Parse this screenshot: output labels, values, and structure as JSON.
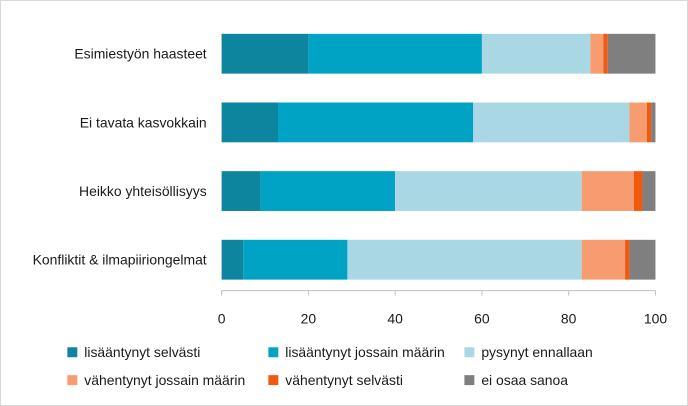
{
  "chart_data": {
    "type": "bar",
    "orientation": "horizontal",
    "stacked": true,
    "categories": [
      "Esimiestyön haasteet",
      "Ei tavata kasvokkain",
      "Heikko yhteisöllisyys",
      "Konfliktit & ilmapiiriongelmat"
    ],
    "series": [
      {
        "name": "lisääntynyt selvästi",
        "color": "#0e859e",
        "values": [
          20,
          13,
          9,
          5
        ]
      },
      {
        "name": "lisääntynyt jossain määrin",
        "color": "#00a3c4",
        "values": [
          40,
          45,
          31,
          24
        ]
      },
      {
        "name": "pysynyt ennallaan",
        "color": "#a9d8e4",
        "values": [
          25,
          36,
          43,
          54
        ]
      },
      {
        "name": "vähentynyt jossain määrin",
        "color": "#f79b70",
        "values": [
          3,
          4,
          12,
          10
        ]
      },
      {
        "name": "vähentynyt selvästi",
        "color": "#ef5a0e",
        "values": [
          1,
          1,
          2,
          1
        ]
      },
      {
        "name": "ei osaa sanoa",
        "color": "#7f7f7f",
        "values": [
          11,
          1,
          3,
          6
        ]
      }
    ],
    "xlim": [
      0,
      100
    ],
    "xticks": [
      "0",
      "20",
      "40",
      "60",
      "80",
      "100"
    ],
    "grid": false,
    "legend_position": "bottom",
    "title": "",
    "xlabel": "",
    "ylabel": ""
  }
}
